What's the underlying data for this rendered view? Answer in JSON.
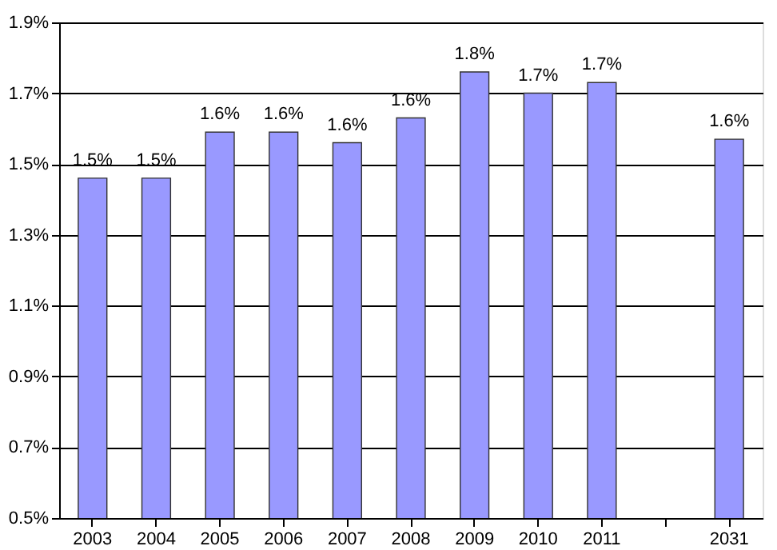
{
  "chart_data": {
    "type": "bar",
    "categories": [
      "2003",
      "2004",
      "2005",
      "2006",
      "2007",
      "2008",
      "2009",
      "2010",
      "2011",
      null,
      "2031"
    ],
    "values": [
      1.46,
      1.46,
      1.59,
      1.59,
      1.56,
      1.63,
      1.76,
      1.7,
      1.73,
      null,
      1.57
    ],
    "value_labels": [
      "1.5%",
      "1.5%",
      "1.6%",
      "1.6%",
      "1.6%",
      "1.6%",
      "1.8%",
      "1.7%",
      "1.7%",
      null,
      "1.6%"
    ],
    "color": "#9999ff",
    "ylim": [
      0.5,
      1.9
    ],
    "yticks": [
      {
        "value": 0.5,
        "label": "0.5%"
      },
      {
        "value": 0.7,
        "label": "0.7%"
      },
      {
        "value": 0.9,
        "label": "0.9%"
      },
      {
        "value": 1.1,
        "label": "1.1%"
      },
      {
        "value": 1.3,
        "label": "1.3%"
      },
      {
        "value": 1.5,
        "label": "1.5%"
      },
      {
        "value": 1.7,
        "label": "1.7%"
      },
      {
        "value": 1.9,
        "label": "1.9%"
      }
    ],
    "grid": "y",
    "legend": false
  }
}
